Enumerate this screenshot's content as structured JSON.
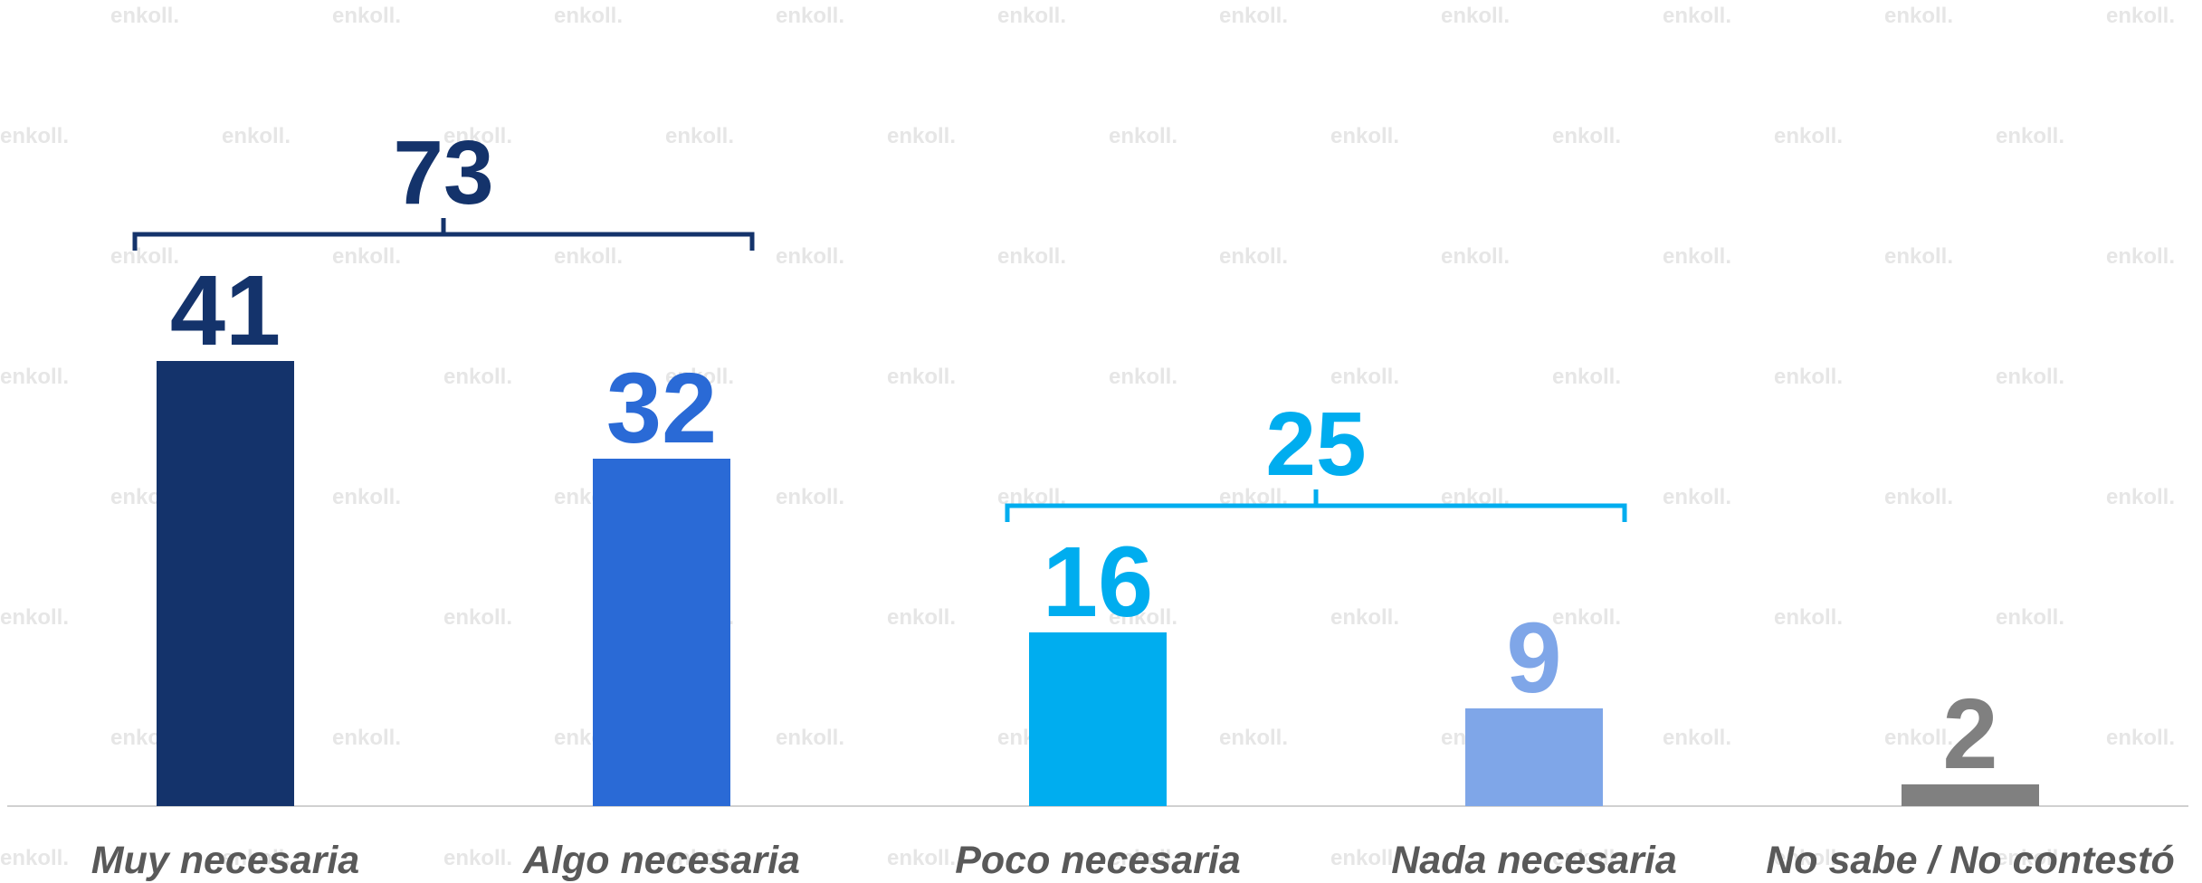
{
  "chart_data": {
    "type": "bar",
    "categories": [
      "Muy necesaria",
      "Algo necesaria",
      "Poco necesaria",
      "Nada necesaria",
      "No sabe / No contestó"
    ],
    "values": [
      41,
      32,
      16,
      9,
      2
    ],
    "colors": [
      "#14336b",
      "#2a6ad6",
      "#00adef",
      "#7fa6e8",
      "#808080"
    ],
    "ylim": [
      0,
      74
    ],
    "groups": [
      {
        "value": 73,
        "color": "#14336b",
        "members": [
          "Muy necesaria",
          "Algo necesaria"
        ]
      },
      {
        "value": 25,
        "color": "#00adef",
        "members": [
          "Poco necesaria",
          "Nada necesaria"
        ]
      }
    ],
    "watermark": "enkoll."
  }
}
